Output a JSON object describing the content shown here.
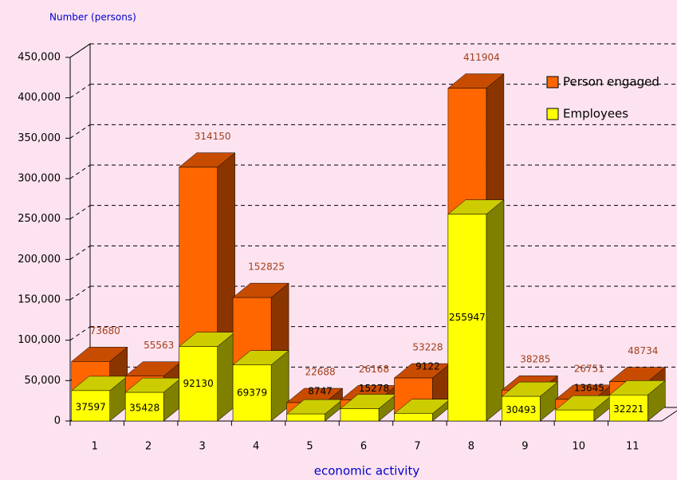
{
  "chart_data": {
    "type": "bar3d",
    "y_label": "Number (persons)",
    "x_label": "economic activity",
    "categories": [
      "1",
      "2",
      "3",
      "4",
      "5",
      "6",
      "7",
      "8",
      "9",
      "10",
      "11"
    ],
    "series": [
      {
        "name": "Person engaged",
        "color": "#ff6600",
        "values": [
          73680,
          55563,
          314150,
          152825,
          22688,
          26168,
          53228,
          411904,
          38285,
          26751,
          48734
        ]
      },
      {
        "name": "Employees",
        "color": "#ffff00",
        "values": [
          37597,
          35428,
          92130,
          69379,
          8747,
          15278,
          9122,
          255947,
          30493,
          13645,
          32221
        ]
      }
    ],
    "ylim": [
      0,
      450000
    ],
    "yticks": [
      0,
      {
        "value": 50000,
        "label": "50,000"
      },
      {
        "value": 100000,
        "label": "100,000"
      },
      {
        "value": 150000,
        "label": "150,000"
      },
      {
        "value": 200000,
        "label": "200,000"
      },
      {
        "value": 250000,
        "label": "250,000"
      },
      {
        "value": 300000,
        "label": "300,000"
      },
      {
        "value": 350000,
        "label": "350,000"
      },
      {
        "value": 400000,
        "label": "400,000"
      },
      {
        "value": 450000,
        "label": "450,000"
      }
    ],
    "grid": true,
    "legend": "top-right"
  }
}
